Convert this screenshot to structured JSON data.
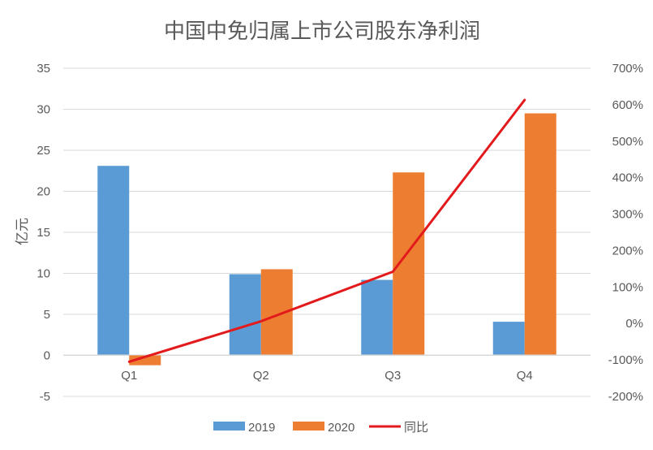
{
  "chart_data": {
    "type": "bar",
    "title": "中国中免归属上市公司股东净利润",
    "ylabel": "亿元",
    "categories": [
      "Q1",
      "Q2",
      "Q3",
      "Q4"
    ],
    "ylim": [
      -5,
      35
    ],
    "y_ticks": [
      "35",
      "30",
      "25",
      "20",
      "15",
      "10",
      "5",
      "0",
      "-5"
    ],
    "y_tick_values": [
      35,
      30,
      25,
      20,
      15,
      10,
      5,
      0,
      -5
    ],
    "y2lim": [
      -200,
      700
    ],
    "y2_ticks": [
      "700%",
      "600%",
      "500%",
      "400%",
      "300%",
      "200%",
      "100%",
      "0%",
      "-100%",
      "-200%"
    ],
    "y2_tick_values": [
      700,
      600,
      500,
      400,
      300,
      200,
      100,
      0,
      -100,
      -200
    ],
    "grid": true,
    "legend_position": "bottom",
    "series": [
      {
        "name": "2019",
        "type": "bar",
        "axis": "left",
        "color": "#5B9BD5",
        "values": [
          23.1,
          9.9,
          9.2,
          4.1
        ]
      },
      {
        "name": "2020",
        "type": "bar",
        "axis": "left",
        "color": "#ED7D31",
        "values": [
          -1.2,
          10.5,
          22.3,
          29.5
        ]
      },
      {
        "name": "同比",
        "type": "line",
        "axis": "right",
        "color": "#E31A1C",
        "values": [
          -105,
          6,
          142,
          613
        ]
      }
    ]
  }
}
